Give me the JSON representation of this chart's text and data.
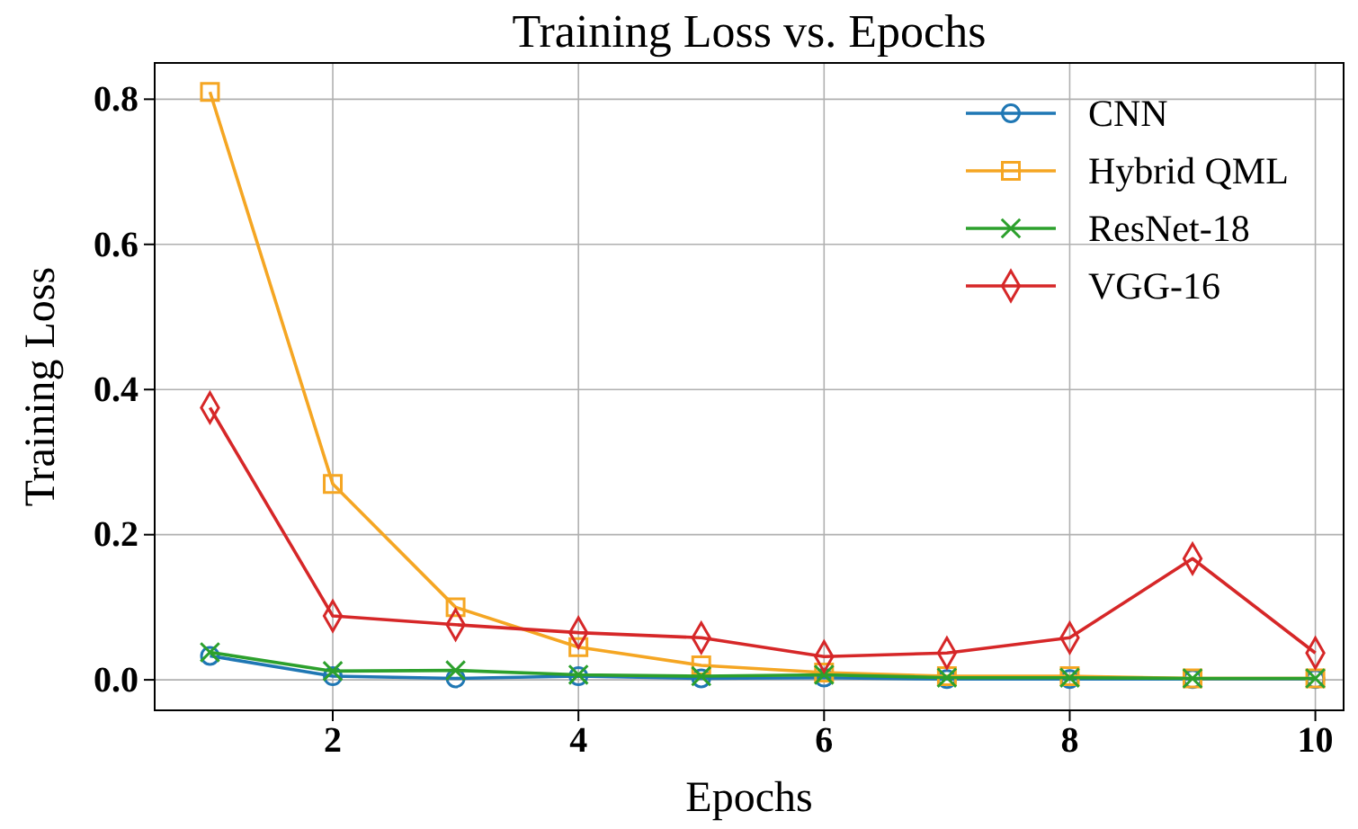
{
  "chart_data": {
    "type": "line",
    "title": "Training Loss vs. Epochs",
    "xlabel": "Epochs",
    "ylabel": "Training Loss",
    "x": [
      1,
      2,
      3,
      4,
      5,
      6,
      7,
      8,
      9,
      10
    ],
    "xlim": [
      0.55,
      10.23
    ],
    "xticks": [
      2,
      4,
      6,
      8,
      10
    ],
    "ylim": [
      -0.042,
      0.85
    ],
    "yticks": [
      {
        "value": 0,
        "label": "0.0"
      },
      0.2,
      0.4,
      0.6,
      0.8
    ],
    "grid": true,
    "legend": "top right",
    "series": [
      {
        "name": "CNN",
        "color": "#1f77b4",
        "marker": "circle",
        "values": [
          0.033,
          0.005,
          0.002,
          0.005,
          0.002,
          0.003,
          0.001,
          0.001,
          0.001,
          0.001
        ]
      },
      {
        "name": "Hybrid QML",
        "color": "#f5a623",
        "marker": "square",
        "values": [
          0.81,
          0.27,
          0.1,
          0.045,
          0.02,
          0.01,
          0.005,
          0.005,
          0.002,
          0.002
        ]
      },
      {
        "name": "ResNet-18",
        "color": "#2ca02c",
        "marker": "cross",
        "values": [
          0.038,
          0.012,
          0.013,
          0.007,
          0.005,
          0.007,
          0.003,
          0.003,
          0.002,
          0.002
        ]
      },
      {
        "name": "VGG-16",
        "color": "#d62728",
        "marker": "diamond",
        "values": [
          0.375,
          0.088,
          0.076,
          0.065,
          0.058,
          0.032,
          0.037,
          0.058,
          0.167,
          0.037
        ]
      }
    ]
  }
}
